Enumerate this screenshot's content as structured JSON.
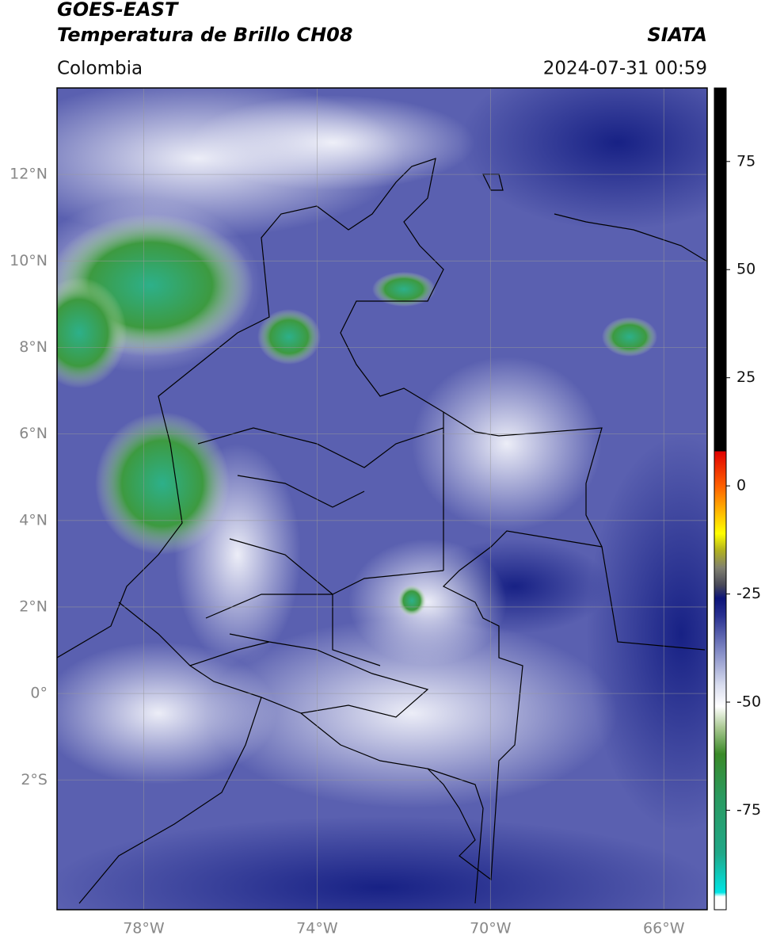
{
  "header": {
    "title": "GOES-EAST",
    "subtitle": "Temperatura de Brillo CH08",
    "source": "SIATA",
    "region": "Colombia",
    "datetime": "2024-07-31 00:59"
  },
  "map": {
    "lon_range": [
      -80,
      -65
    ],
    "lat_range": [
      -5,
      14
    ],
    "grid": true,
    "lon_ticks": [
      {
        "value": -78,
        "label": "78°W"
      },
      {
        "value": -74,
        "label": "74°W"
      },
      {
        "value": -70,
        "label": "70°W"
      },
      {
        "value": -66,
        "label": "66°W"
      }
    ],
    "lat_ticks": [
      {
        "value": 12,
        "label": "12°N"
      },
      {
        "value": 10,
        "label": "10°N"
      },
      {
        "value": 8,
        "label": "8°N"
      },
      {
        "value": 6,
        "label": "6°N"
      },
      {
        "value": 4,
        "label": "4°N"
      },
      {
        "value": 2,
        "label": "2°N"
      },
      {
        "value": 0,
        "label": "0°"
      },
      {
        "value": -2,
        "label": "2°S"
      }
    ]
  },
  "colorbar": {
    "range": [
      -98,
      92
    ],
    "ticks": [
      75,
      50,
      25,
      0,
      -25,
      -50,
      -75
    ],
    "stops": [
      {
        "value": -98,
        "color": "#ffffff"
      },
      {
        "value": -95,
        "color": "#ffffff"
      },
      {
        "value": -94,
        "color": "#00e5e5"
      },
      {
        "value": -85,
        "color": "#20a888"
      },
      {
        "value": -72,
        "color": "#2a9a60"
      },
      {
        "value": -62,
        "color": "#3a8a28"
      },
      {
        "value": -56,
        "color": "#a8c890"
      },
      {
        "value": -51,
        "color": "#ffffff"
      },
      {
        "value": -46,
        "color": "#d8dcee"
      },
      {
        "value": -38,
        "color": "#8088c4"
      },
      {
        "value": -30,
        "color": "#283090"
      },
      {
        "value": -26,
        "color": "#0c1478"
      },
      {
        "value": -23,
        "color": "#484858"
      },
      {
        "value": -19,
        "color": "#808070"
      },
      {
        "value": -15,
        "color": "#b0b020"
      },
      {
        "value": -11,
        "color": "#ffff00"
      },
      {
        "value": -5,
        "color": "#ffaa00"
      },
      {
        "value": 0,
        "color": "#ff6000"
      },
      {
        "value": 8,
        "color": "#e00000"
      },
      {
        "value": 8.01,
        "color": "#000000"
      },
      {
        "value": 92,
        "color": "#000000"
      }
    ]
  }
}
